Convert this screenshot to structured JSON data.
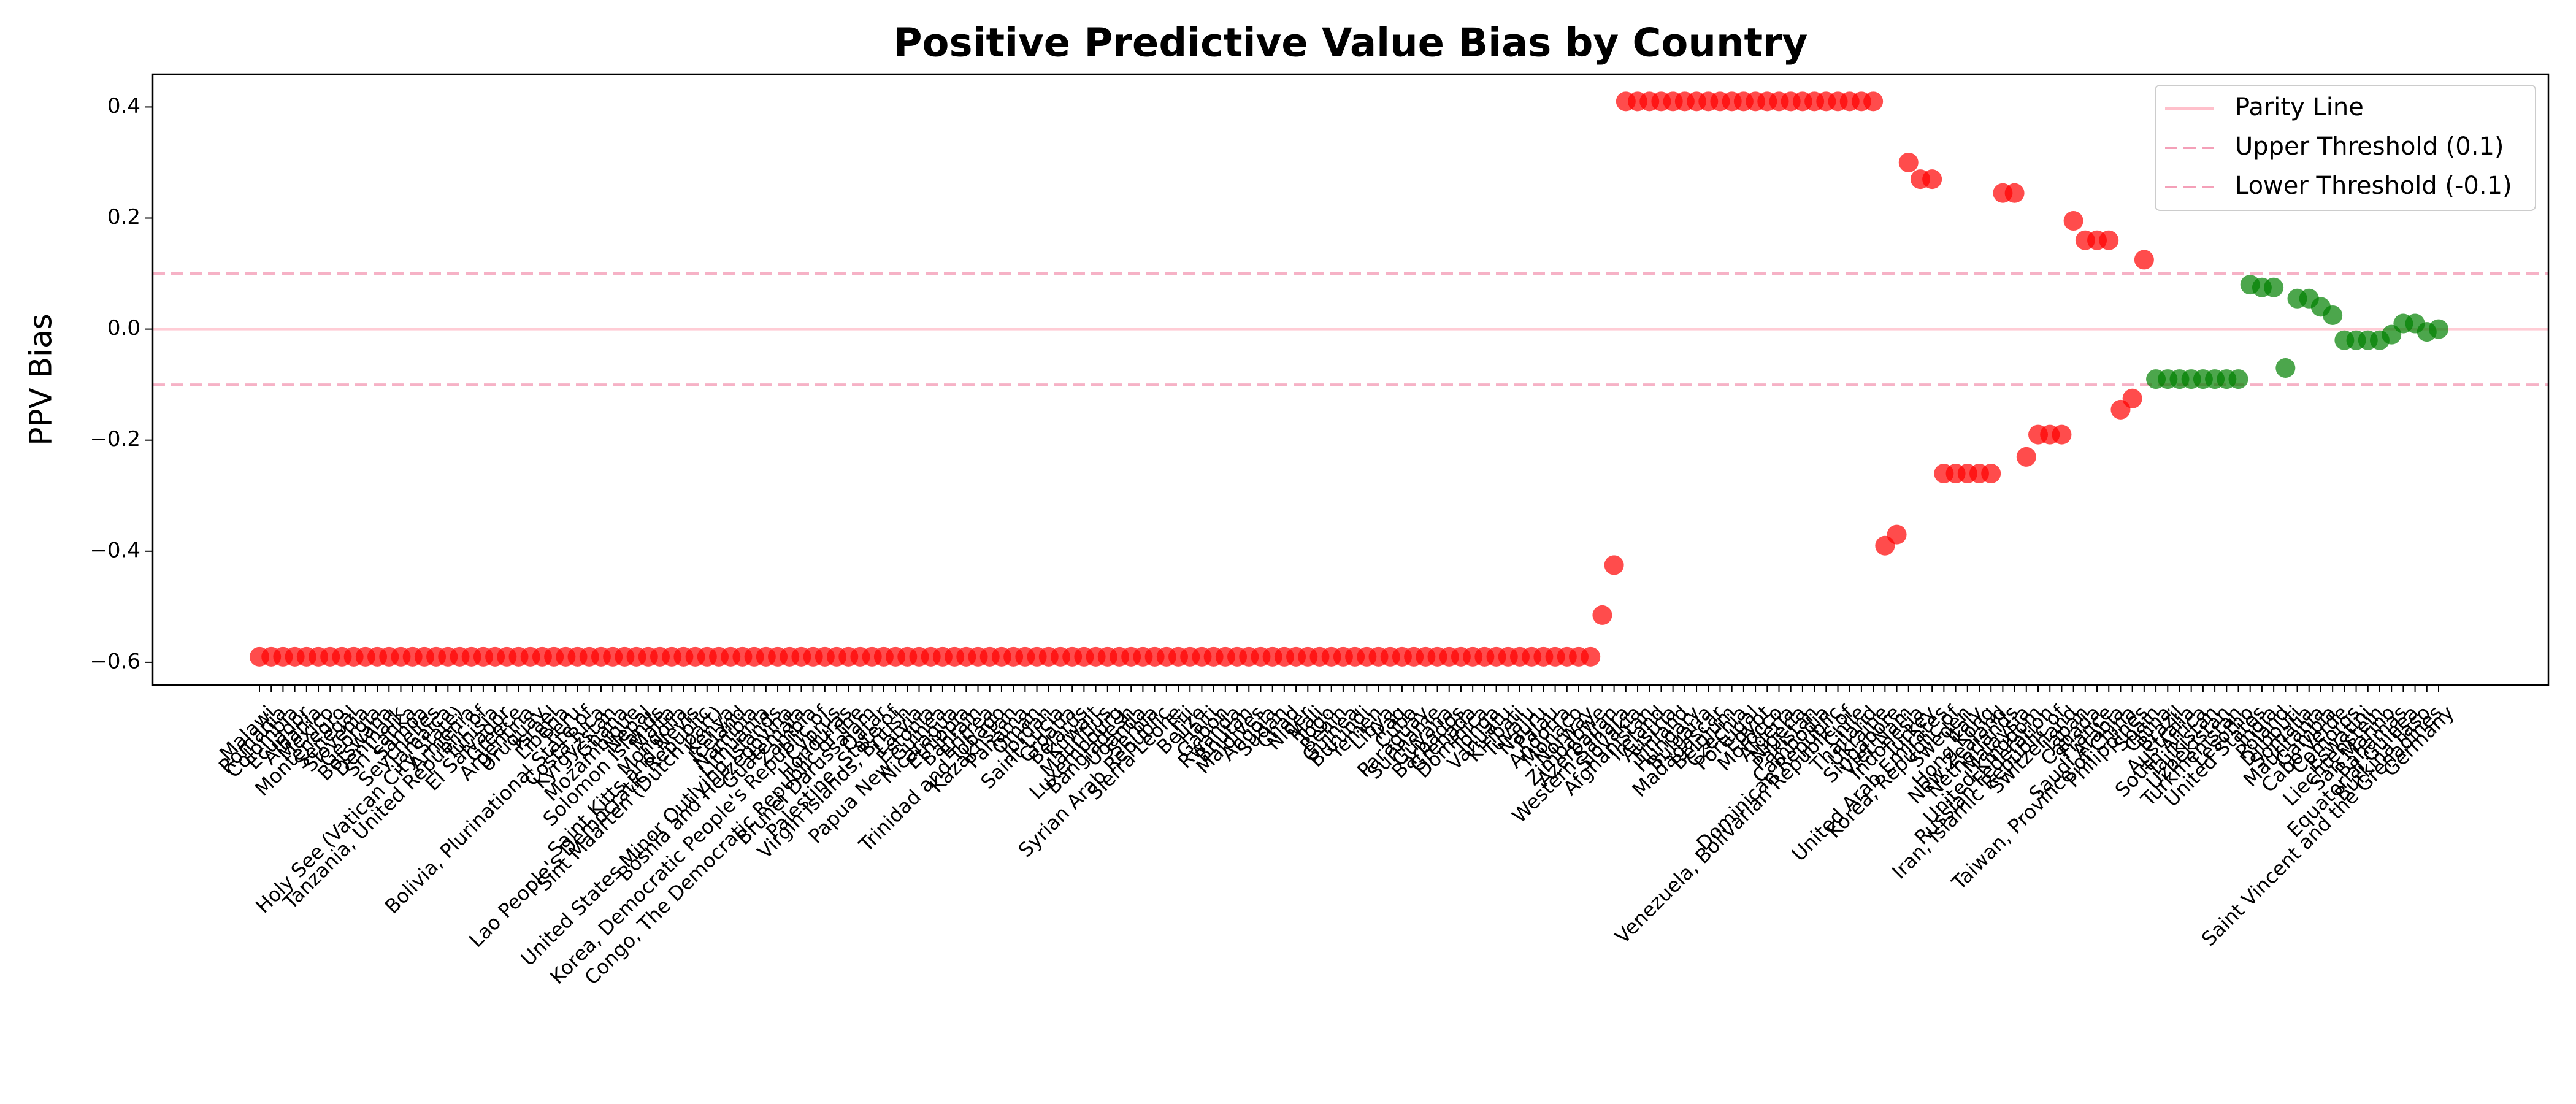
{
  "chart_data": {
    "type": "scatter",
    "title": "Positive Predictive Value Bias by Country",
    "y_label": "PPV Bias",
    "categories": [
      "Malawi",
      "Romania",
      "Colombia",
      "Ecuador",
      "Albania",
      "Mexico",
      "Montenegro",
      "Senegal",
      "Slovenia",
      "Georgia",
      "Botswana",
      "Denmark",
      "Sri Lanka",
      "Samoa",
      "Seychelles",
      "Jamaica",
      "Holy See (Vatican City State)",
      "Armenia",
      "Tanzania, United Republic of",
      "Tunisia",
      "El Salvador",
      "Greece",
      "Argentina",
      "Uruguay",
      "Israel",
      "Liberia",
      "Peru",
      "Bolivia, Plurinational State of",
      "Costa Rica",
      "Kyrgyzstan",
      "Ghana",
      "Mozambique",
      "Nepal",
      "Solomon Islands",
      "Malta",
      "Mongolia",
      "Saint Kitts and Nevis",
      "Lao People's Democratic Republic",
      "Sint Maarten (Dutch part)",
      "Kenya",
      "Iceland",
      "Namibia",
      "Lithuania",
      "United States Minor Outlying Islands",
      "Bosnia and Herzegovina",
      "Guatemala",
      "Zambia",
      "Korea, Democratic People's Republic of",
      "Cyprus",
      "Honduras",
      "Congo, The Democratic Republic of the",
      "Brunei Darussalam",
      "Qatar",
      "Palestine, State of",
      "Virgin Islands, British",
      "Latvia",
      "Estonia",
      "Papua New Guinea",
      "Nicaragua",
      "Ethiopia",
      "Bahrain",
      "Eritrea",
      "Trinidad and Tobago",
      "Kazakhstan",
      "Panama",
      "Oman",
      "Jordan",
      "Saint Lucia",
      "Croatia",
      "Belarus",
      "Kuwait",
      "Mauritius",
      "Luxembourg",
      "Bangladesh",
      "Uganda",
      "Serbia",
      "Syrian Arab Republic",
      "Sierra Leone",
      "Fiji",
      "Belize",
      "Haiti",
      "Gabon",
      "Rwanda",
      "Bhutan",
      "Maldives",
      "Angola",
      "Sudan",
      "Chad",
      "Niger",
      "Mali",
      "Togo",
      "Benin",
      "Guinea",
      "Burundi",
      "Yemen",
      "Libya",
      "Iraq",
      "Cuba",
      "Paraguay",
      "Suriname",
      "Guyana",
      "Barbados",
      "Grenada",
      "Dominica",
      "Tonga",
      "Vanuatu",
      "Kiribati",
      "Tuvalu",
      "Nauru",
      "Palau",
      "Andorra",
      "Monaco",
      "Norway",
      "Zimbabwe",
      "Azerbaijan",
      "Western Sahara",
      "Slovakia",
      "Afghanistan",
      "Ireland",
      "Austria",
      "Finland",
      "Hungary",
      "Bulgaria",
      "Madagascar",
      "Belgium",
      "Czechia",
      "Portugal",
      "Egypt",
      "Morocco",
      "Algeria",
      "Nigeria",
      "Pakistan",
      "Cambodia",
      "Dominican Republic",
      "Venezuela, Bolivarian Republic of",
      "Chile",
      "Thailand",
      "Ukraine",
      "Singapore",
      "Viet Nam",
      "Indonesia",
      "Turkey",
      "United Arab Emirates",
      "Korea, Republic of",
      "Sweden",
      "Italy",
      "Hong Kong",
      "New Zealand",
      "Netherlands",
      "Malaysia",
      "United Kingdom",
      "Russian Federation",
      "Iran, Islamic Republic of",
      "Switzerland",
      "Japan",
      "Canada",
      "France",
      "Saudi Arabia",
      "Taiwan, Province of China",
      "Philippines",
      "Spain",
      "China",
      "Brazil",
      "Australia",
      "South Africa",
      "Tajikistan",
      "Uzbekistan",
      "Turkmenistan",
      "Lesotho",
      "United States",
      "India",
      "Poland",
      "Djibouti",
      "Somalia",
      "Mauritania",
      "Gambia",
      "Cabo Verde",
      "Comoros",
      "Eswatini",
      "Liechtenstein",
      "San Marino",
      "Bahamas",
      "Equatorial Guinea",
      "Burkina Faso",
      "Saint Vincent and the Grenadines",
      "Germany"
    ],
    "values": [
      -0.59,
      -0.59,
      -0.59,
      -0.59,
      -0.59,
      -0.59,
      -0.59,
      -0.59,
      -0.59,
      -0.59,
      -0.59,
      -0.59,
      -0.59,
      -0.59,
      -0.59,
      -0.59,
      -0.59,
      -0.59,
      -0.59,
      -0.59,
      -0.59,
      -0.59,
      -0.59,
      -0.59,
      -0.59,
      -0.59,
      -0.59,
      -0.59,
      -0.59,
      -0.59,
      -0.59,
      -0.59,
      -0.59,
      -0.59,
      -0.59,
      -0.59,
      -0.59,
      -0.59,
      -0.59,
      -0.59,
      -0.59,
      -0.59,
      -0.59,
      -0.59,
      -0.59,
      -0.59,
      -0.59,
      -0.59,
      -0.59,
      -0.59,
      -0.59,
      -0.59,
      -0.59,
      -0.59,
      -0.59,
      -0.59,
      -0.59,
      -0.59,
      -0.59,
      -0.59,
      -0.59,
      -0.59,
      -0.59,
      -0.59,
      -0.59,
      -0.59,
      -0.59,
      -0.59,
      -0.59,
      -0.59,
      -0.59,
      -0.59,
      -0.59,
      -0.59,
      -0.59,
      -0.59,
      -0.59,
      -0.59,
      -0.59,
      -0.59,
      -0.59,
      -0.59,
      -0.59,
      -0.59,
      -0.59,
      -0.59,
      -0.59,
      -0.59,
      -0.59,
      -0.59,
      -0.59,
      -0.59,
      -0.59,
      -0.59,
      -0.59,
      -0.59,
      -0.59,
      -0.59,
      -0.59,
      -0.59,
      -0.59,
      -0.59,
      -0.59,
      -0.59,
      -0.59,
      -0.59,
      -0.59,
      -0.59,
      -0.59,
      -0.59,
      -0.59,
      -0.59,
      -0.59,
      -0.59,
      -0.515,
      -0.425,
      0.41,
      0.41,
      0.41,
      0.41,
      0.41,
      0.41,
      0.41,
      0.41,
      0.41,
      0.41,
      0.41,
      0.41,
      0.41,
      0.41,
      0.41,
      0.41,
      0.41,
      0.41,
      0.41,
      0.41,
      0.41,
      0.41,
      -0.39,
      -0.37,
      0.3,
      0.27,
      0.27,
      -0.26,
      -0.26,
      -0.26,
      -0.26,
      -0.26,
      0.245,
      0.245,
      -0.23,
      -0.19,
      -0.19,
      -0.19,
      0.195,
      0.16,
      0.16,
      0.16,
      -0.145,
      -0.125,
      0.125,
      -0.09,
      -0.09,
      -0.09,
      -0.09,
      -0.09,
      -0.09,
      -0.09,
      -0.09,
      0.08,
      0.075,
      0.075,
      -0.07,
      0.055,
      0.055,
      0.04,
      0.025,
      -0.02,
      -0.02,
      -0.02,
      -0.02,
      -0.01,
      0.01,
      0.01,
      -0.005,
      0.0
    ],
    "outside_threshold_color": "#ff0000",
    "inside_threshold_color": "#008000",
    "ylim": [
      -0.641,
      0.459
    ],
    "yticks": [
      {
        "value": -0.6,
        "label": "−0.6"
      },
      {
        "value": -0.4,
        "label": "−0.4"
      },
      {
        "value": -0.2,
        "label": "−0.2"
      },
      {
        "value": 0,
        "label": "0.0"
      },
      {
        "value": 0.2,
        "label": "0.2"
      },
      {
        "value": 0.4,
        "label": "0.4"
      }
    ],
    "reference_lines": [
      {
        "name": "Parity Line",
        "value": 0,
        "style": "solid",
        "color": "#ffc0cb"
      },
      {
        "name": "Upper Threshold (0.1)",
        "value": 0.1,
        "style": "dashed",
        "color": "#f4a0b8"
      },
      {
        "name": "Lower Threshold (-0.1)",
        "value": -0.1,
        "style": "dashed",
        "color": "#f4a0b8"
      }
    ],
    "legend": "upper right"
  }
}
